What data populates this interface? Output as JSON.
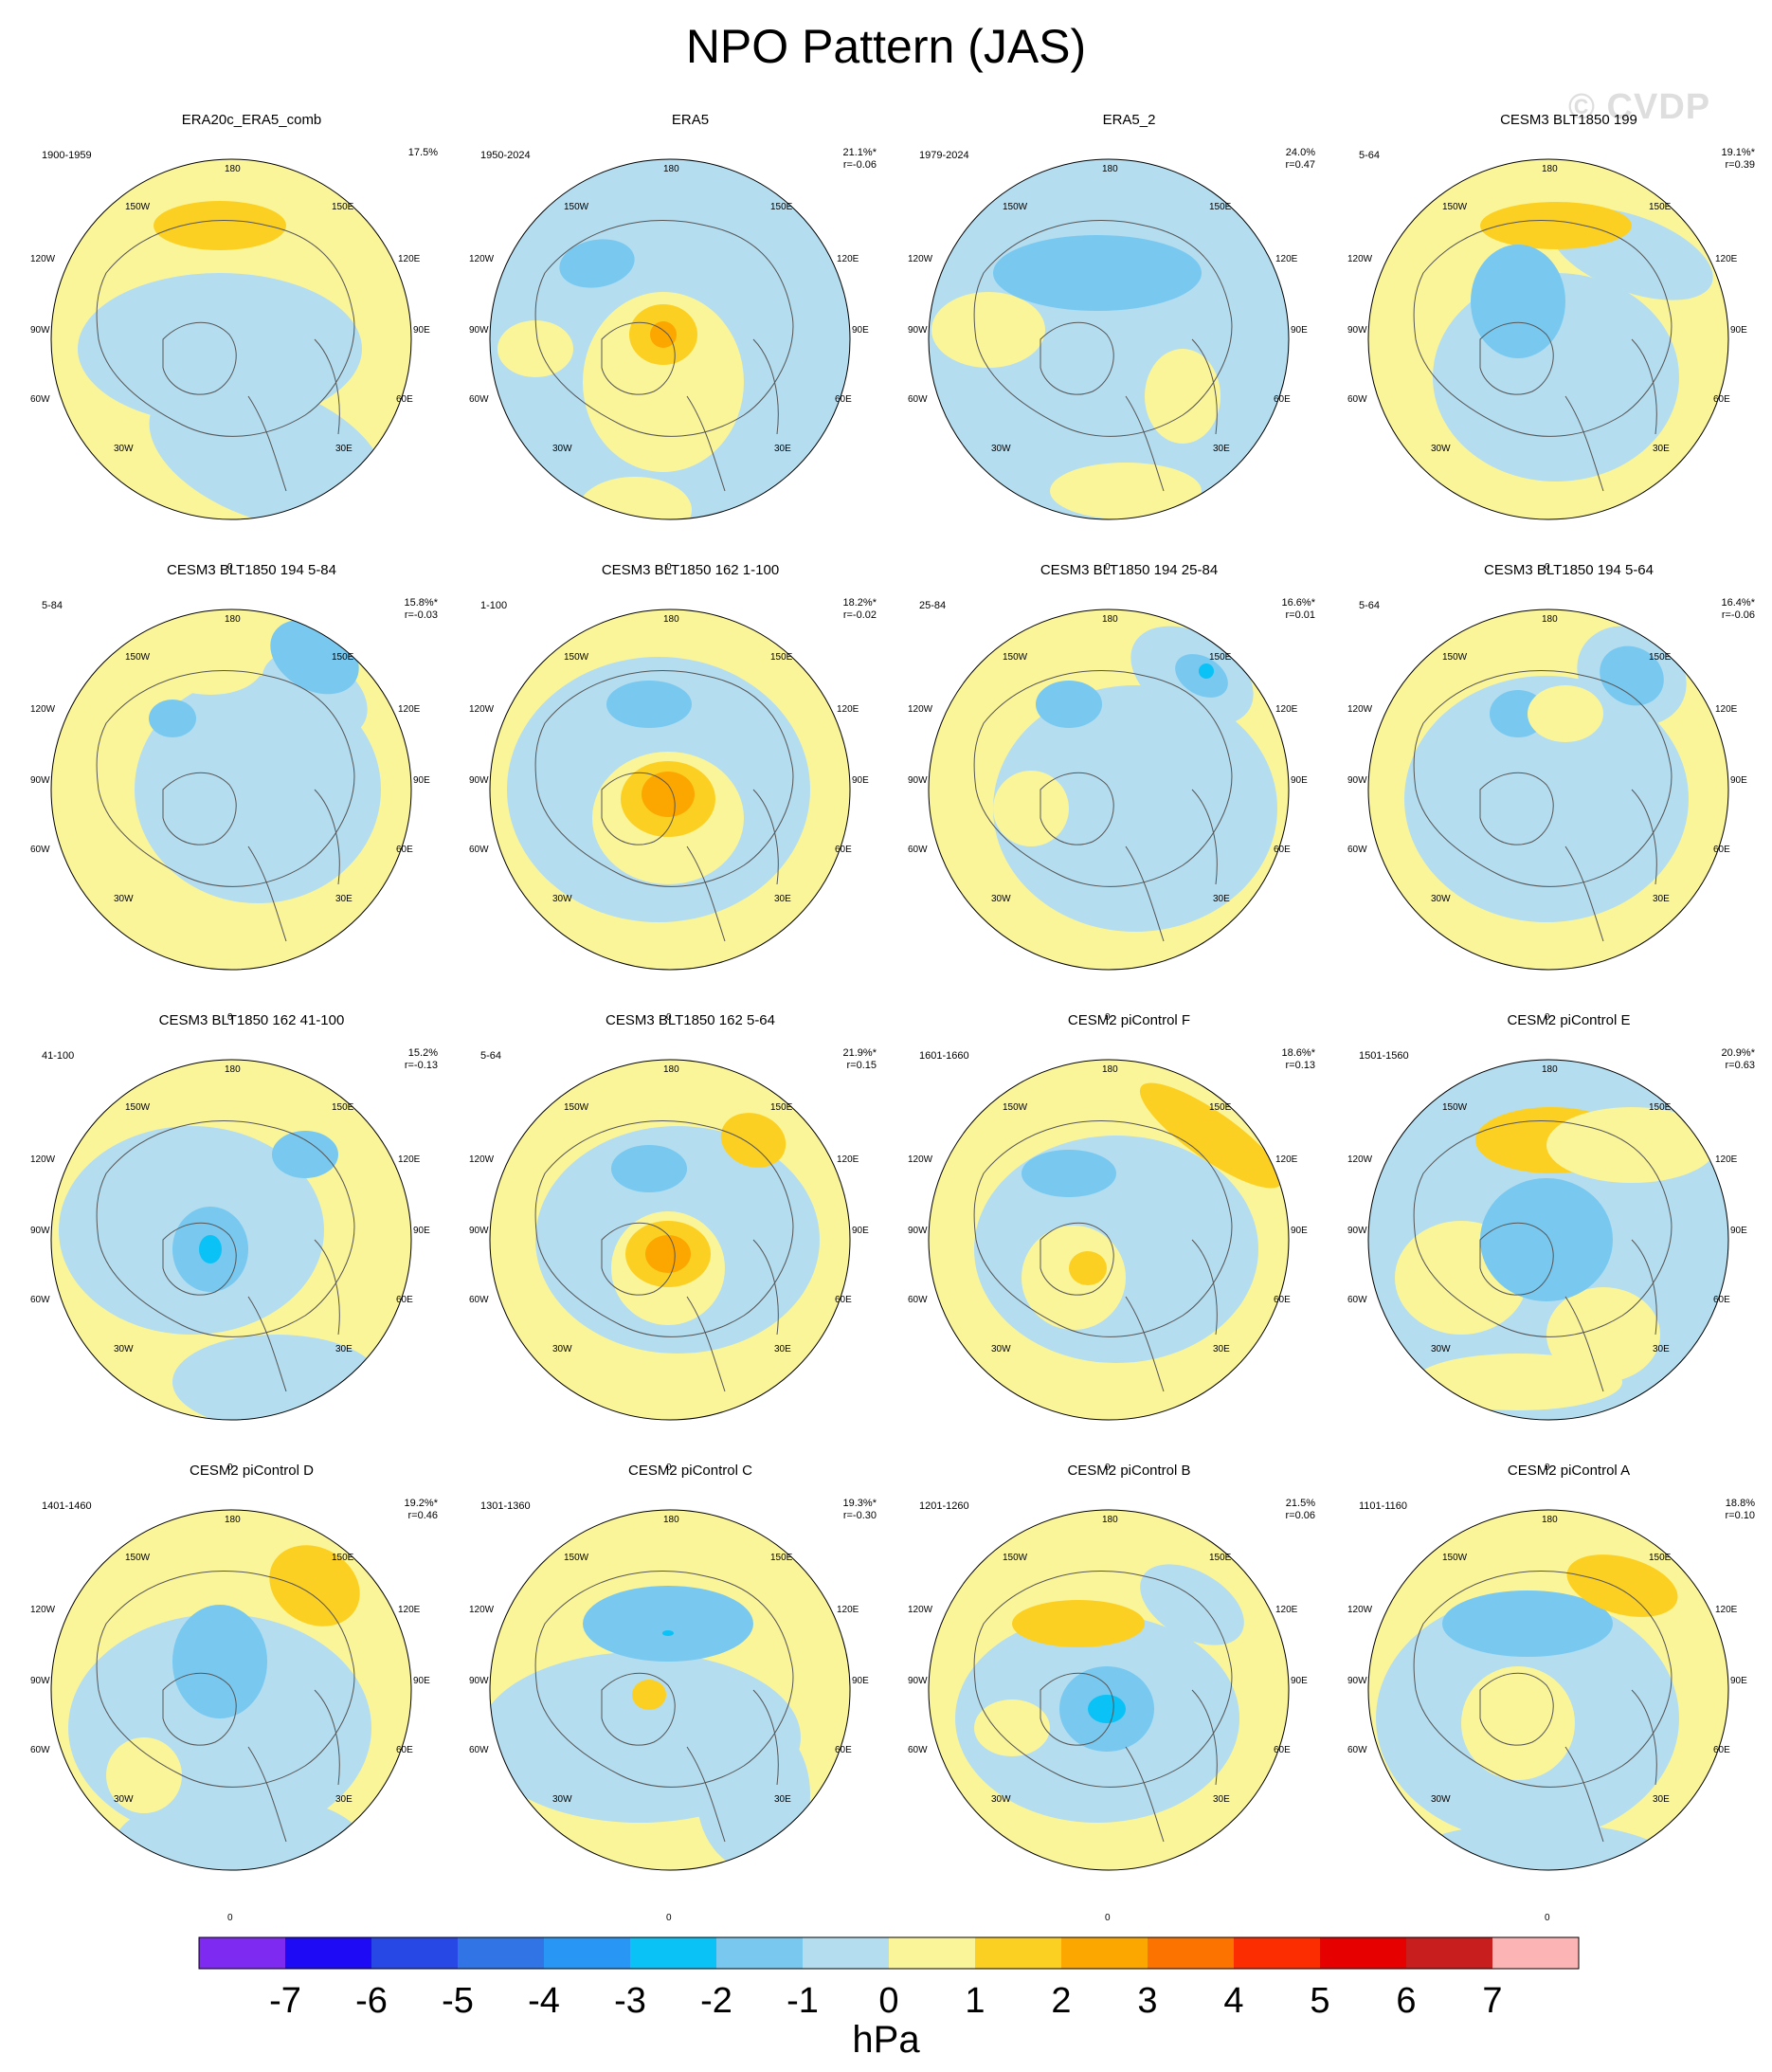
{
  "title": "NPO Pattern (JAS)",
  "watermark": "© CVDP",
  "map": {
    "lon_labels": {
      "top": "180",
      "bottom": "0",
      "upper_left": "150W",
      "upper_right": "150E",
      "left_upper": "120W",
      "right_upper": "120E",
      "left_mid": "90W",
      "right_mid": "90E",
      "left_lower": "60W",
      "right_lower": "60E",
      "lower_left": "30W",
      "lower_right": "30E"
    }
  },
  "panels": [
    {
      "title": "ERA20c_ERA5_comb",
      "period": "1900-1959",
      "pct": "17.5%",
      "r": ""
    },
    {
      "title": "ERA5",
      "period": "1950-2024",
      "pct": "21.1%*",
      "r": "r=-0.06"
    },
    {
      "title": "ERA5_2",
      "period": "1979-2024",
      "pct": "24.0%",
      "r": "r=0.47"
    },
    {
      "title": "CESM3 BLT1850 199",
      "period": "5-64",
      "pct": "19.1%*",
      "r": "r=0.39"
    },
    {
      "title": "CESM3 BLT1850 194 5-84",
      "period": "5-84",
      "pct": "15.8%*",
      "r": "r=-0.03"
    },
    {
      "title": "CESM3 BLT1850 162 1-100",
      "period": "1-100",
      "pct": "18.2%*",
      "r": "r=-0.02"
    },
    {
      "title": "CESM3 BLT1850 194 25-84",
      "period": "25-84",
      "pct": "16.6%*",
      "r": "r=0.01"
    },
    {
      "title": "CESM3 BLT1850 194 5-64",
      "period": "5-64",
      "pct": "16.4%*",
      "r": "r=-0.06"
    },
    {
      "title": "CESM3 BLT1850 162 41-100",
      "period": "41-100",
      "pct": "15.2%",
      "r": "r=-0.13"
    },
    {
      "title": "CESM3 BLT1850 162 5-64",
      "period": "5-64",
      "pct": "21.9%*",
      "r": "r=0.15"
    },
    {
      "title": "CESM2 piControl F",
      "period": "1601-1660",
      "pct": "18.6%*",
      "r": "r=0.13"
    },
    {
      "title": "CESM2 piControl E",
      "period": "1501-1560",
      "pct": "20.9%*",
      "r": "r=0.63"
    },
    {
      "title": "CESM2 piControl D",
      "period": "1401-1460",
      "pct": "19.2%*",
      "r": "r=0.46"
    },
    {
      "title": "CESM2 piControl C",
      "period": "1301-1360",
      "pct": "19.3%*",
      "r": "r=-0.30"
    },
    {
      "title": "CESM2 piControl B",
      "period": "1201-1260",
      "pct": "21.5%",
      "r": "r=0.06"
    },
    {
      "title": "CESM2 piControl A",
      "period": "1101-1160",
      "pct": "18.8%",
      "r": "r=0.10"
    }
  ],
  "colorbar": {
    "unit": "hPa",
    "ticks": [
      "-7",
      "-6",
      "-5",
      "-4",
      "-3",
      "-2",
      "-1",
      "0",
      "1",
      "2",
      "3",
      "4",
      "5",
      "6",
      "7"
    ],
    "colors": [
      "#7f2af0",
      "#1e0af5",
      "#2848e6",
      "#3074e6",
      "#2896f5",
      "#0ac2f5",
      "#78c8f0",
      "#b4ddf0",
      "#fbf59a",
      "#fcd023",
      "#fca600",
      "#fc7300",
      "#fc2d00",
      "#e60000",
      "#c81e1e",
      "#fcb4b4"
    ]
  },
  "colors": {
    "light_blue": "#b4ddf0",
    "mid_blue": "#78c8f0",
    "cyan": "#0ac2f5",
    "light_yellow": "#fbf59a",
    "gold": "#fcd023",
    "orange": "#fca600",
    "coast": "#555555"
  }
}
